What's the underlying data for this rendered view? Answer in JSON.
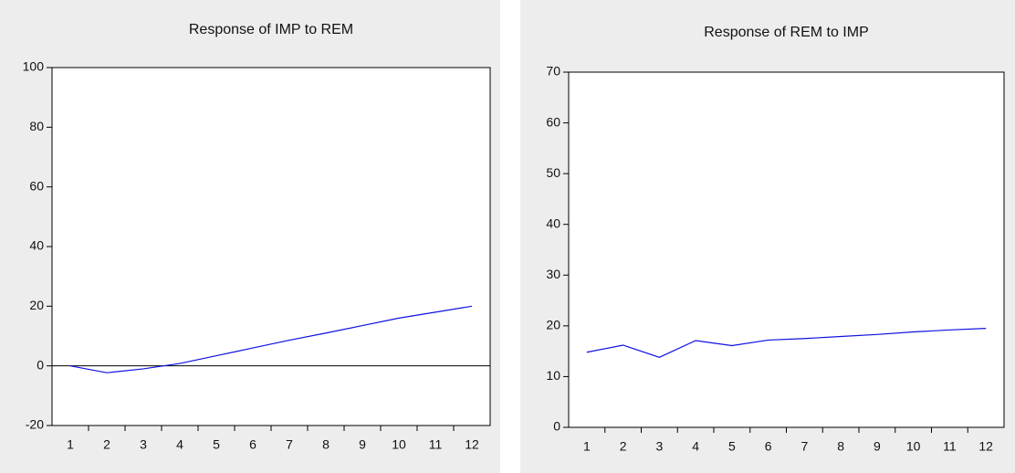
{
  "chart_data": [
    {
      "type": "line",
      "title": "Response of IMP to REM",
      "categories": [
        "1",
        "2",
        "3",
        "4",
        "5",
        "6",
        "7",
        "8",
        "9",
        "10",
        "11",
        "12"
      ],
      "series": [
        {
          "color": "#1010e0",
          "values": [
            0,
            -2.3,
            -1,
            0.8,
            3.4,
            6,
            8.6,
            11,
            13.5,
            16,
            18,
            20
          ]
        }
      ],
      "ylim": [
        -20,
        100
      ],
      "yticks": [
        -20,
        0,
        20,
        40,
        60,
        80,
        100
      ],
      "zero_line": true
    },
    {
      "type": "line",
      "title": "Response of REM to IMP",
      "categories": [
        "1",
        "2",
        "3",
        "4",
        "5",
        "6",
        "7",
        "8",
        "9",
        "10",
        "11",
        "12"
      ],
      "series": [
        {
          "color": "#1010e0",
          "values": [
            14.8,
            16.2,
            13.8,
            17.1,
            16.1,
            17.2,
            17.5,
            17.9,
            18.3,
            18.8,
            19.2,
            19.5
          ]
        }
      ],
      "ylim": [
        0,
        70
      ],
      "yticks": [
        0,
        10,
        20,
        30,
        40,
        50,
        60,
        70
      ],
      "zero_line": false
    }
  ]
}
